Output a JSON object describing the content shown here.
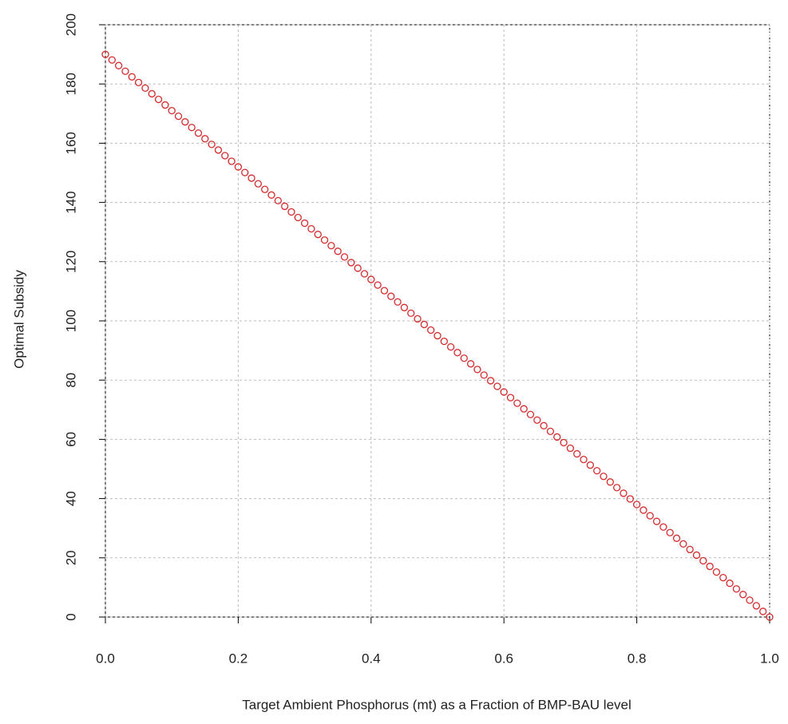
{
  "chart_data": {
    "type": "scatter",
    "xlabel": "Target Ambient Phosphorus (mt) as a Fraction of BMP-BAU level",
    "ylabel": "Optimal Subsidy",
    "x": [
      0,
      0.01,
      0.02,
      0.03,
      0.04,
      0.05,
      0.06,
      0.07,
      0.08,
      0.09,
      0.1,
      0.11,
      0.12,
      0.13,
      0.14,
      0.15,
      0.16,
      0.17,
      0.18,
      0.19,
      0.2,
      0.21,
      0.22,
      0.23,
      0.24,
      0.25,
      0.26,
      0.27,
      0.28,
      0.29,
      0.3,
      0.31,
      0.32,
      0.33,
      0.34,
      0.35,
      0.36,
      0.37,
      0.38,
      0.39,
      0.4,
      0.41,
      0.42,
      0.43,
      0.44,
      0.45,
      0.46,
      0.47,
      0.48,
      0.49,
      0.5,
      0.51,
      0.52,
      0.53,
      0.54,
      0.55,
      0.56,
      0.57,
      0.58,
      0.59,
      0.6,
      0.61,
      0.62,
      0.63,
      0.64,
      0.65,
      0.66,
      0.67,
      0.68,
      0.69,
      0.7,
      0.71,
      0.72,
      0.73,
      0.74,
      0.75,
      0.76,
      0.77,
      0.78,
      0.79,
      0.8,
      0.81,
      0.82,
      0.83,
      0.84,
      0.85,
      0.86,
      0.87,
      0.88,
      0.89,
      0.9,
      0.91,
      0.92,
      0.93,
      0.94,
      0.95,
      0.96,
      0.97,
      0.98,
      0.99,
      1
    ],
    "series": [
      {
        "color": "#d42a2a",
        "values": [
          190,
          188.1,
          186.2,
          184.3,
          182.4,
          180.5,
          178.6,
          176.7,
          174.8,
          172.9,
          171,
          169.1,
          167.2,
          165.3,
          163.4,
          161.5,
          159.6,
          157.7,
          155.8,
          153.9,
          152,
          150.1,
          148.2,
          146.3,
          144.4,
          142.5,
          140.6,
          138.7,
          136.8,
          134.9,
          133,
          131.1,
          129.2,
          127.3,
          125.4,
          123.5,
          121.6,
          119.7,
          117.8,
          115.9,
          114,
          112.1,
          110.2,
          108.3,
          106.4,
          104.5,
          102.6,
          100.7,
          98.8,
          96.9,
          95,
          93.1,
          91.2,
          89.3,
          87.4,
          85.5,
          83.6,
          81.7,
          79.8,
          77.9,
          76,
          74.1,
          72.2,
          70.3,
          68.4,
          66.5,
          64.6,
          62.7,
          60.8,
          58.9,
          57,
          55.1,
          53.2,
          51.3,
          49.4,
          47.5,
          45.6,
          43.7,
          41.8,
          39.9,
          38,
          36.1,
          34.2,
          32.3,
          30.4,
          28.5,
          26.6,
          24.7,
          22.8,
          20.9,
          19,
          17.1,
          15.2,
          13.3,
          11.4,
          9.5,
          7.6,
          5.7,
          3.8,
          1.9,
          0
        ]
      }
    ],
    "xlim": [
      0,
      1
    ],
    "ylim": [
      0,
      200
    ],
    "xticks": [
      {
        "value": 0,
        "label": "0.0"
      },
      0.2,
      0.4,
      0.6,
      0.8,
      {
        "value": 1,
        "label": "1.0"
      }
    ],
    "yticks": [
      0,
      20,
      40,
      60,
      80,
      100,
      120,
      140,
      160,
      180,
      200
    ],
    "grid": true
  }
}
